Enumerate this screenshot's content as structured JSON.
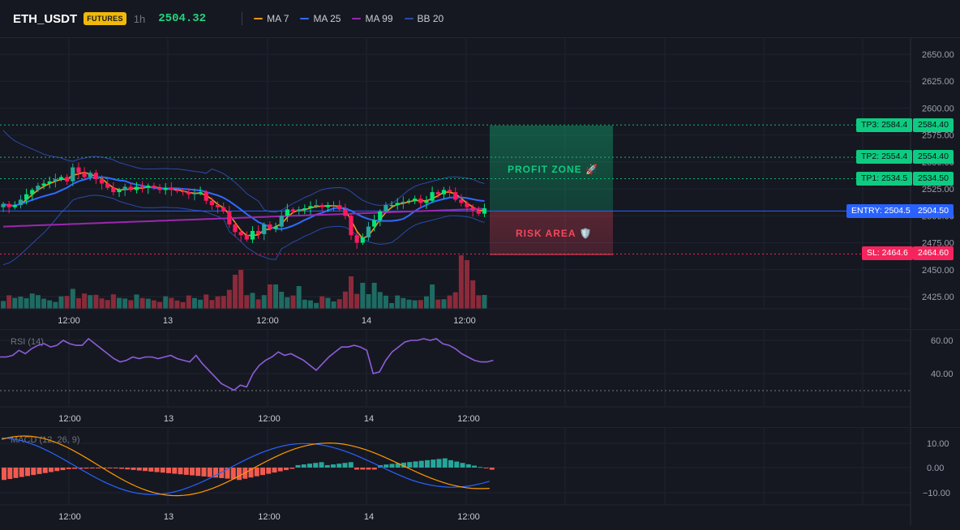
{
  "header": {
    "symbol": "ETH_USDT",
    "badge": "FUTURES",
    "timeframe": "1h",
    "price": "2504.32",
    "indicators": [
      {
        "label": "MA 7",
        "color": "#f7931a"
      },
      {
        "label": "MA 25",
        "color": "#2f6bff"
      },
      {
        "label": "MA 99",
        "color": "#9c27b0"
      },
      {
        "label": "BB 20",
        "color": "#2b4aa8"
      }
    ]
  },
  "price_axis": [
    "2650.00",
    "2625.00",
    "2600.00",
    "2575.00",
    "2550.00",
    "2525.00",
    "2500.00",
    "2475.00",
    "2450.00",
    "2425.00"
  ],
  "time_axis": [
    "12:00",
    "13",
    "12:00",
    "14",
    "12:00"
  ],
  "levels": {
    "tp3": {
      "tag": "TP3: 2584.4",
      "price": "2584.40",
      "value": 2584.4
    },
    "tp2": {
      "tag": "TP2: 2554.4",
      "price": "2554.40",
      "value": 2554.4
    },
    "tp1": {
      "tag": "TP1: 2534.5",
      "price": "2534.50",
      "value": 2534.5
    },
    "entry": {
      "tag": "ENTRY: 2504.5",
      "price": "2504.50",
      "value": 2504.5
    },
    "sl": {
      "tag": "SL: 2464.6",
      "price": "2464.60",
      "value": 2464.6
    }
  },
  "zones": {
    "profit": "PROFIT ZONE 🚀",
    "risk": "RISK AREA 🛡️"
  },
  "rsi": {
    "title": "RSI (14)",
    "axis": [
      "60.00",
      "40.00"
    ],
    "oversold_line": 30
  },
  "macd": {
    "title": "MACD (12, 26, 9)",
    "axis": [
      "10.00",
      "0.00",
      "−10.00"
    ]
  },
  "colors": {
    "up": "#26a69a",
    "up_bright": "#00e676",
    "down": "#ff1a5e",
    "vol_up": "#1e6b63",
    "vol_down": "#8b2a3a",
    "hist_up": "#26a69a",
    "hist_down": "#f05a50",
    "rsi": "#8e5cd9",
    "macd": "#2962ff",
    "signal": "#ff9800",
    "profit": "#0ecb81",
    "risk": "#f6465d",
    "entry": "#2962ff"
  }
}
